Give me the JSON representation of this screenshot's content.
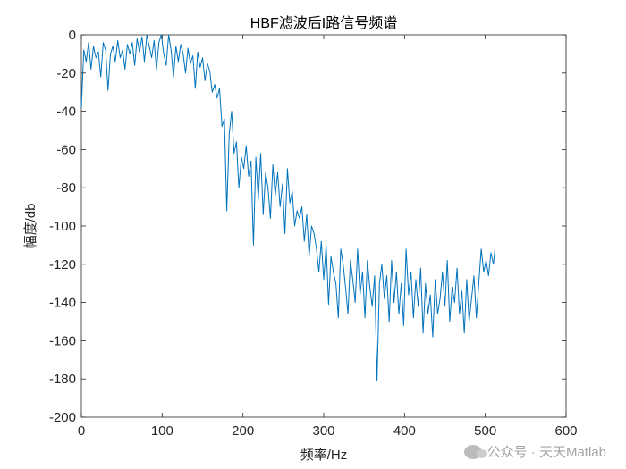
{
  "chart_data": {
    "type": "line",
    "title": "HBF滤波后I路信号频谱",
    "xlabel": "频率/Hz",
    "ylabel": "幅度/db",
    "xlim": [
      0,
      600
    ],
    "ylim": [
      -200,
      0
    ],
    "xticks": [
      0,
      100,
      200,
      300,
      400,
      500,
      600
    ],
    "yticks": [
      0,
      -20,
      -40,
      -60,
      -80,
      -100,
      -120,
      -140,
      -160,
      -180,
      -200
    ],
    "grid": false,
    "line_color": "#0072BD",
    "series": [
      {
        "x": [
          0,
          3,
          6,
          9,
          12,
          15,
          18,
          21,
          24,
          27,
          30,
          33,
          36,
          39,
          42,
          45,
          48,
          51,
          54,
          57,
          60,
          63,
          66,
          69,
          72,
          75,
          78,
          81,
          84,
          87,
          90,
          93,
          96,
          99,
          102,
          105,
          108,
          111,
          114,
          117,
          120,
          123,
          126,
          129,
          132,
          135,
          138,
          141,
          144,
          147,
          150,
          153,
          156,
          159,
          162,
          165,
          168,
          171,
          174,
          177,
          180,
          183,
          186,
          189,
          192,
          195,
          198,
          201,
          204,
          207,
          210,
          213,
          216,
          219,
          222,
          225,
          228,
          231,
          234,
          237,
          240,
          243,
          246,
          249,
          252,
          255,
          258,
          261,
          264,
          267,
          270,
          273,
          276,
          279,
          282,
          285,
          288,
          291,
          294,
          297,
          300,
          303,
          306,
          309,
          312,
          315,
          318,
          321,
          324,
          327,
          330,
          333,
          336,
          339,
          342,
          345,
          348,
          351,
          354,
          357,
          360,
          363,
          366,
          369,
          372,
          375,
          378,
          381,
          384,
          387,
          390,
          393,
          396,
          399,
          402,
          405,
          408,
          411,
          414,
          417,
          420,
          423,
          426,
          429,
          432,
          435,
          438,
          441,
          444,
          447,
          450,
          453,
          456,
          459,
          462,
          465,
          468,
          471,
          474,
          477,
          480,
          483,
          486,
          489,
          492,
          495,
          498,
          501,
          504,
          507,
          510,
          512
        ],
        "y": [
          -38,
          -8,
          -14,
          -4,
          -18,
          -6,
          -12,
          -9,
          -22,
          -4,
          -8,
          -29,
          -10,
          -6,
          -14,
          -3,
          -12,
          -8,
          -18,
          -5,
          -10,
          -4,
          -16,
          -2,
          -9,
          -1,
          -14,
          0,
          -6,
          -12,
          -3,
          -18,
          -4,
          0,
          -10,
          -16,
          0,
          -8,
          -22,
          -6,
          -14,
          -5,
          -10,
          -20,
          -7,
          -15,
          -11,
          -28,
          -9,
          -17,
          -12,
          -24,
          -15,
          -19,
          -30,
          -26,
          -33,
          -28,
          -48,
          -44,
          -92,
          -52,
          -40,
          -62,
          -56,
          -80,
          -64,
          -70,
          -58,
          -74,
          -66,
          -110,
          -64,
          -86,
          -62,
          -94,
          -72,
          -80,
          -96,
          -68,
          -84,
          -72,
          -90,
          -78,
          -104,
          -70,
          -88,
          -82,
          -100,
          -92,
          -96,
          -90,
          -108,
          -94,
          -116,
          -100,
          -104,
          -112,
          -124,
          -108,
          -128,
          -110,
          -141,
          -116,
          -124,
          -130,
          -148,
          -112,
          -120,
          -132,
          -146,
          -118,
          -128,
          -140,
          -112,
          -136,
          -124,
          -148,
          -118,
          -132,
          -142,
          -126,
          -181,
          -130,
          -120,
          -138,
          -126,
          -150,
          -118,
          -140,
          -124,
          -146,
          -130,
          -152,
          -112,
          -136,
          -124,
          -148,
          -128,
          -142,
          -122,
          -156,
          -130,
          -146,
          -136,
          -158,
          -128,
          -146,
          -138,
          -124,
          -142,
          -118,
          -150,
          -132,
          -140,
          -122,
          -146,
          -134,
          -156,
          -128,
          -150,
          -138,
          -126,
          -148,
          -130,
          -112,
          -124,
          -118,
          -126,
          -114,
          -120,
          -112
        ],
        "values_note": ""
      }
    ]
  },
  "watermark": {
    "text": "公众号 · 天天Matlab",
    "icon": "wechat-icon"
  }
}
